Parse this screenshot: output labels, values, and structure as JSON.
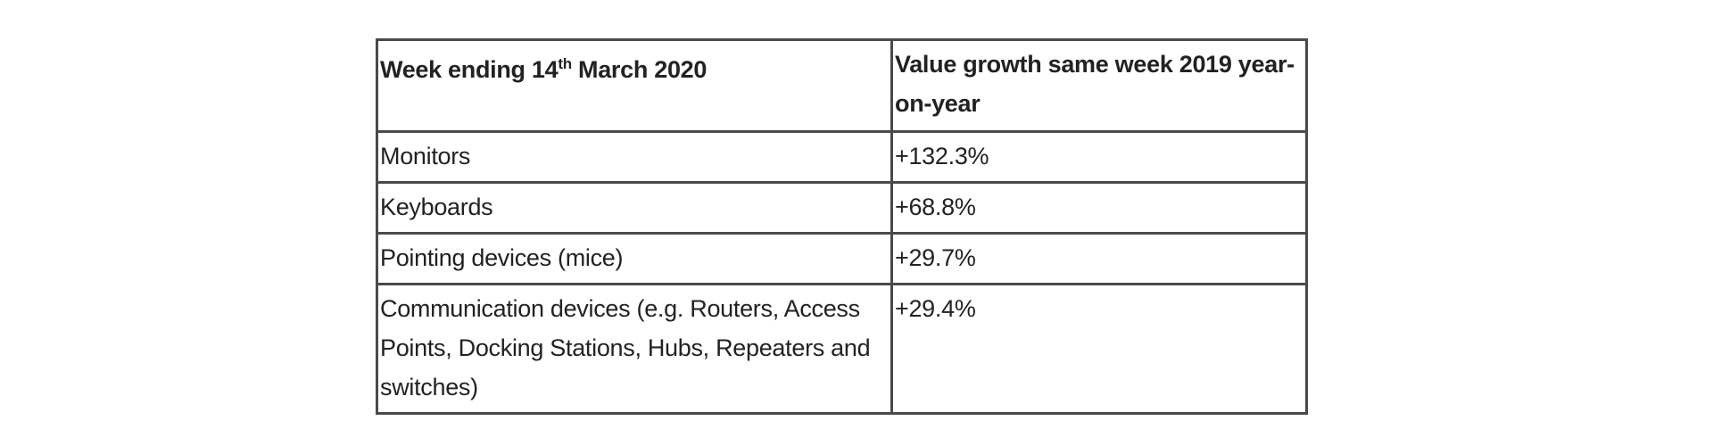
{
  "table": {
    "headers": {
      "col1_prefix": "Week ending 14",
      "col1_sup": "th",
      "col1_suffix": " March 2020",
      "col2": "Value growth same week 2019 year-on-year"
    },
    "rows": [
      {
        "category": "Monitors",
        "growth": "+132.3%"
      },
      {
        "category": "Keyboards",
        "growth": "+68.8%"
      },
      {
        "category": "Pointing devices (mice)",
        "growth": "+29.7%"
      },
      {
        "category": "Communication devices (e.g. Routers, Access Points, Docking Stations, Hubs, Repeaters and switches)",
        "growth": "+29.4%"
      }
    ]
  }
}
